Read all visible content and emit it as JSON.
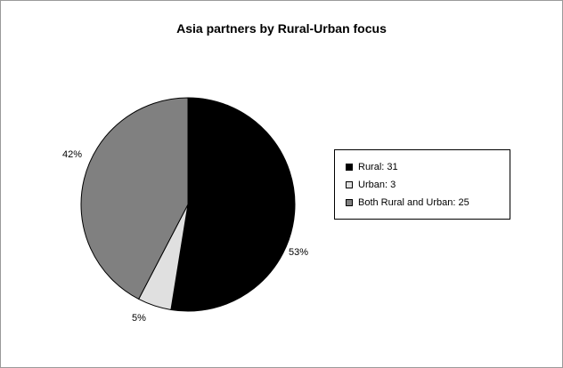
{
  "chart_data": {
    "type": "pie",
    "title": "Asia partners by Rural-Urban focus",
    "legend_position": "right",
    "slices": [
      {
        "name": "Rural",
        "value": 31,
        "percent_label": "53%",
        "color": "#000000",
        "legend_label": "Rural: 31"
      },
      {
        "name": "Urban",
        "value": 3,
        "percent_label": "5%",
        "color": "#e0e0e0",
        "legend_label": "Urban: 3"
      },
      {
        "name": "Both Rural and Urban",
        "value": 25,
        "percent_label": "42%",
        "color": "#808080",
        "legend_label": "Both Rural and Urban: 25"
      }
    ]
  }
}
